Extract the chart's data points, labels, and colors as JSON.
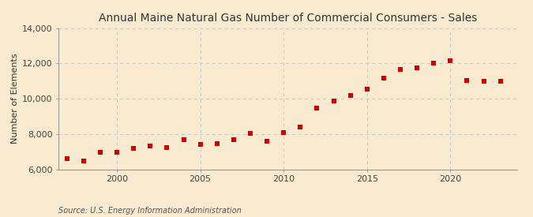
{
  "title": "Annual Maine Natural Gas Number of Commercial Consumers - Sales",
  "ylabel": "Number of Elements",
  "source": "Source: U.S. Energy Information Administration",
  "background_color": "#faebd0",
  "plot_bg_color": "#faebd0",
  "marker_color": "#cc0000",
  "marker_size": 4,
  "years": [
    1997,
    1998,
    1999,
    2000,
    2001,
    2002,
    2003,
    2004,
    2005,
    2006,
    2007,
    2008,
    2009,
    2010,
    2011,
    2012,
    2013,
    2014,
    2015,
    2016,
    2017,
    2018,
    2019,
    2020,
    2021,
    2022,
    2023
  ],
  "values": [
    6600,
    6450,
    6950,
    6950,
    7200,
    7300,
    7250,
    7700,
    7400,
    7450,
    7700,
    8050,
    7600,
    8100,
    8400,
    9450,
    9850,
    10200,
    10550,
    11150,
    11650,
    11750,
    12000,
    12150,
    11050,
    11000,
    11000
  ],
  "xlim": [
    1996.5,
    2024
  ],
  "ylim": [
    6000,
    14000
  ],
  "yticks": [
    6000,
    8000,
    10000,
    12000,
    14000
  ],
  "xticks": [
    2000,
    2005,
    2010,
    2015,
    2020
  ],
  "grid_color": "#c8c8c8",
  "grid_style": "--",
  "title_fontsize": 10,
  "ylabel_fontsize": 8,
  "tick_fontsize": 8,
  "source_fontsize": 7
}
